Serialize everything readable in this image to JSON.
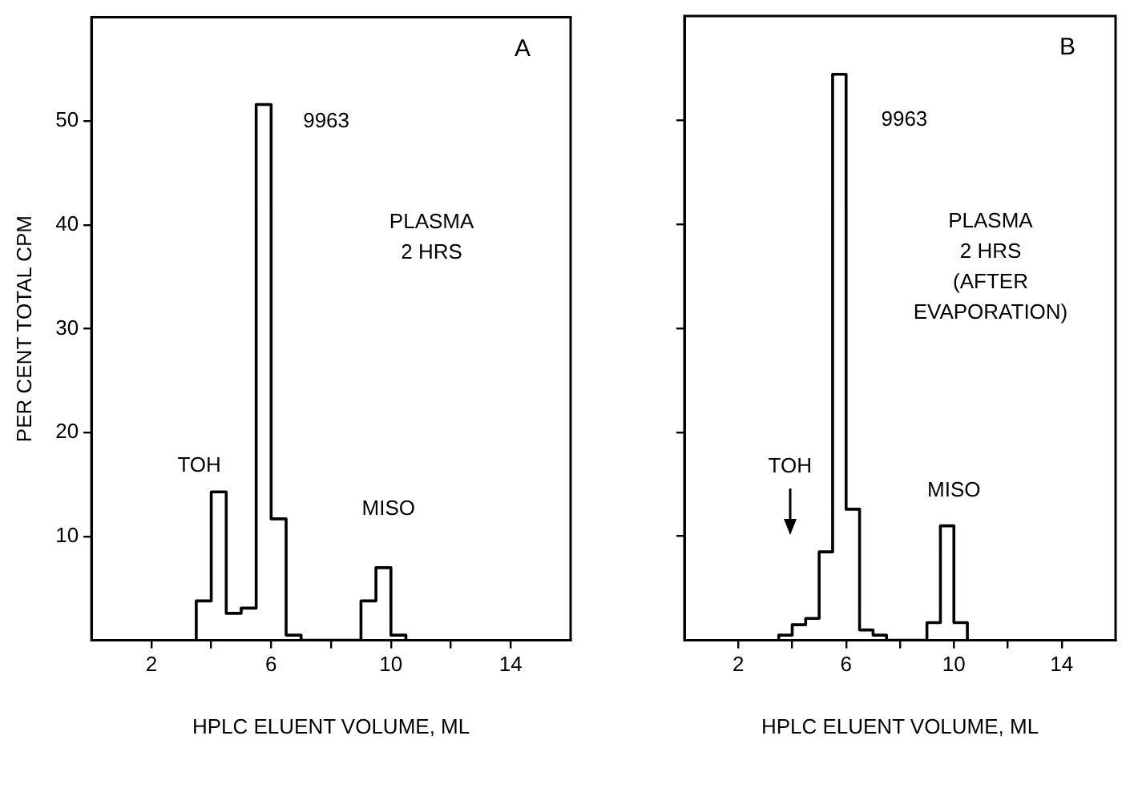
{
  "chart_data": [
    {
      "type": "histogram",
      "title": "A",
      "subtitle": "PLASMA\n2 HRS",
      "xlabel": "HPLC ELUENT VOLUME, ML",
      "ylabel": "PER CENT TOTAL CPM",
      "bins": [
        3.5,
        4,
        4.5,
        5,
        5.5,
        6,
        6.5,
        7,
        7.5,
        8,
        8.5,
        9,
        9.5,
        10,
        10.5
      ],
      "values": [
        3.8,
        14.3,
        2.6,
        3.1,
        51.6,
        11.7,
        0.5,
        0,
        0,
        0,
        0,
        3.8,
        7.0,
        0.5
      ],
      "color": "#000000",
      "xlim": [
        0,
        16
      ],
      "ylim": [
        0,
        60
      ],
      "xticks": [
        2,
        {
          "value": 4,
          "label": null
        },
        6,
        {
          "value": 8,
          "label": null
        },
        10,
        {
          "value": 12,
          "label": null
        },
        14
      ],
      "yticks": [
        10,
        20,
        30,
        40,
        50
      ],
      "grid": false,
      "legend": false,
      "annotations": [
        "9963",
        "TOH",
        "MISO"
      ]
    },
    {
      "type": "histogram",
      "title": "B",
      "subtitle": "PLASMA\n2 HRS\n(AFTER\nEVAPORATION)",
      "xlabel": "HPLC ELUENT VOLUME, ML",
      "bins": [
        3.5,
        4,
        4.5,
        5,
        5.5,
        6,
        6.5,
        7,
        7.5,
        8,
        8.5,
        9,
        9.5,
        10,
        10.5
      ],
      "values": [
        0.5,
        1.5,
        2.1,
        8.5,
        54.4,
        12.6,
        1.0,
        0.5,
        0,
        0,
        0,
        1.7,
        11.0,
        1.7
      ],
      "color": "#000000",
      "xlim": [
        0,
        16
      ],
      "ylim": [
        0,
        60
      ],
      "xticks": [
        2,
        {
          "value": 4,
          "label": null
        },
        6,
        {
          "value": 8,
          "label": null
        },
        10,
        {
          "value": 12,
          "label": null
        },
        14
      ],
      "yticks": [
        10,
        20,
        30,
        40,
        50
      ],
      "tick_labels": "x",
      "grid": false,
      "legend": false,
      "annotations": [
        "9963",
        "TOH",
        "MISO"
      ]
    }
  ]
}
